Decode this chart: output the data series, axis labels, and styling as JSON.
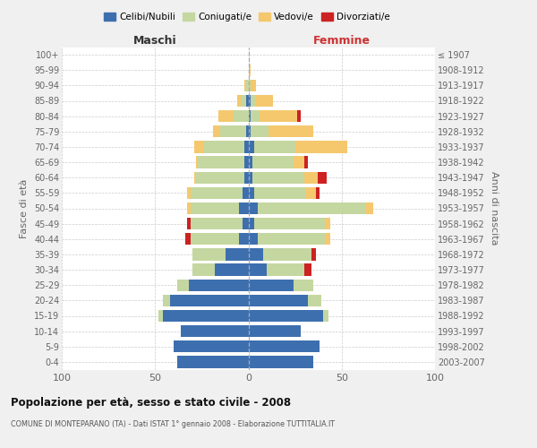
{
  "age_groups": [
    "0-4",
    "5-9",
    "10-14",
    "15-19",
    "20-24",
    "25-29",
    "30-34",
    "35-39",
    "40-44",
    "45-49",
    "50-54",
    "55-59",
    "60-64",
    "65-69",
    "70-74",
    "75-79",
    "80-84",
    "85-89",
    "90-94",
    "95-99",
    "100+"
  ],
  "birth_years": [
    "2003-2007",
    "1998-2002",
    "1993-1997",
    "1988-1992",
    "1983-1987",
    "1978-1982",
    "1973-1977",
    "1968-1972",
    "1963-1967",
    "1958-1962",
    "1953-1957",
    "1948-1952",
    "1943-1947",
    "1938-1942",
    "1933-1937",
    "1928-1932",
    "1923-1927",
    "1918-1922",
    "1913-1917",
    "1908-1912",
    "≤ 1907"
  ],
  "males_celibi": [
    38,
    40,
    36,
    46,
    42,
    32,
    18,
    12,
    5,
    3,
    5,
    3,
    2,
    2,
    2,
    1,
    0,
    1,
    0,
    0,
    0
  ],
  "males_coniugati": [
    0,
    0,
    0,
    2,
    4,
    6,
    12,
    18,
    26,
    28,
    26,
    28,
    26,
    25,
    22,
    14,
    8,
    3,
    1,
    0,
    0
  ],
  "males_vedovi": [
    0,
    0,
    0,
    0,
    0,
    0,
    0,
    0,
    0,
    0,
    2,
    2,
    1,
    1,
    5,
    4,
    8,
    2,
    1,
    0,
    0
  ],
  "males_divorziati": [
    0,
    0,
    0,
    0,
    0,
    0,
    0,
    0,
    3,
    2,
    0,
    0,
    0,
    0,
    0,
    0,
    0,
    0,
    0,
    0,
    0
  ],
  "females_celibi": [
    35,
    38,
    28,
    40,
    32,
    24,
    10,
    8,
    5,
    3,
    5,
    3,
    2,
    2,
    3,
    1,
    1,
    1,
    0,
    0,
    0
  ],
  "females_coniugati": [
    0,
    0,
    0,
    3,
    7,
    11,
    20,
    26,
    36,
    38,
    58,
    28,
    28,
    22,
    22,
    10,
    5,
    3,
    1,
    0,
    0
  ],
  "females_vedovi": [
    0,
    0,
    0,
    0,
    0,
    0,
    0,
    0,
    3,
    3,
    4,
    5,
    7,
    6,
    28,
    24,
    20,
    9,
    3,
    1,
    0
  ],
  "females_divorziati": [
    0,
    0,
    0,
    0,
    0,
    0,
    4,
    2,
    0,
    0,
    0,
    2,
    5,
    2,
    0,
    0,
    2,
    0,
    0,
    0,
    0
  ],
  "colors": {
    "celibi": "#3d6faf",
    "coniugati": "#c5d7a0",
    "vedovi": "#f5c86e",
    "divorziati": "#cc2222"
  },
  "title": "Popolazione per età, sesso e stato civile - 2008",
  "subtitle": "COMUNE DI MONTEPARANO (TA) - Dati ISTAT 1° gennaio 2008 - Elaborazione TUTTITALIA.IT",
  "label_maschi": "Maschi",
  "label_femmine": "Femmine",
  "ylabel_left": "Fasce di età",
  "ylabel_right": "Anni di nascita",
  "xlim": 100,
  "bg_color": "#f0f0f0",
  "plot_bg": "#ffffff",
  "legend_labels": [
    "Celibi/Nubili",
    "Coniugati/e",
    "Vedovi/e",
    "Divorziati/e"
  ],
  "grid_color": "#cccccc",
  "center_line_color": "#aaaaaa"
}
